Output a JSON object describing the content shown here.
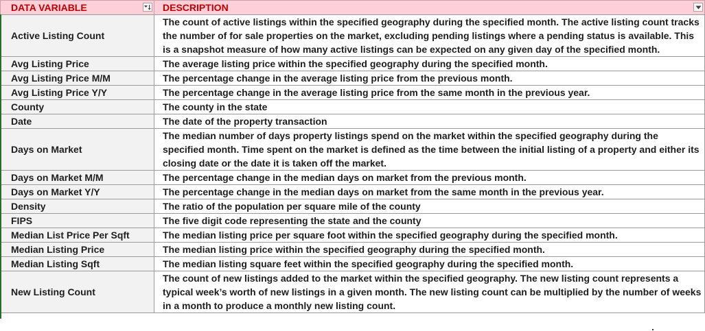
{
  "header": {
    "col1": "DATA VARIABLE",
    "col2": "DESCRIPTION",
    "col1_filter_icon": "sort-filter-icon",
    "col2_filter_icon": "dropdown-filter-icon"
  },
  "colors": {
    "header_bg": "#ffcfd9",
    "header_text": "#c00000",
    "variable_col_bg": "#f2f2f2",
    "grid_line": "#9b9b9b"
  },
  "rows": [
    {
      "variable": "Active Listing Count",
      "description": "The count of active listings within the specified geography during the specified month. The active listing count tracks the number of for sale properties on the market, excluding pending listings where a pending status is available. This is a snapshot measure of how many active listings can be expected on any given day of the specified month."
    },
    {
      "variable": "Avg Listing Price",
      "description": "The average listing price within the specified geography during the specified month."
    },
    {
      "variable": "Avg Listing Price M/M",
      "description": "The percentage change in the average listing price from the previous month."
    },
    {
      "variable": "Avg Listing Price Y/Y",
      "description": "The percentage change in the average listing price from the same month in the previous year."
    },
    {
      "variable": "County",
      "description": "The county in the state"
    },
    {
      "variable": "Date",
      "description": "The date of the property transaction"
    },
    {
      "variable": "Days on Market",
      "description": "The median number of days property listings spend on the market within the specified geography during the specified month. Time spent on the market is defined as the time between the initial listing of a property and either its closing date or the date it is taken off the market."
    },
    {
      "variable": "Days on Market M/M",
      "description": "The percentage change in the median days on market from the previous month."
    },
    {
      "variable": "Days on Market Y/Y",
      "description": "The percentage change in the median days on market from the same month in the previous year."
    },
    {
      "variable": "Density",
      "description": "The ratio of the population per square mile of the county"
    },
    {
      "variable": "FIPS",
      "description": "The five digit code representing the state and the county"
    },
    {
      "variable": "Median List Price Per Sqft",
      "description": "The median listing price per square foot within the specified geography during the specified month."
    },
    {
      "variable": "Median Listing Price",
      "description": "The median listing price within the specified geography during the specified month."
    },
    {
      "variable": "Median Listing Sqft",
      "description": "The median listing square feet within the specified geography during the specified month."
    },
    {
      "variable": "New Listing Count",
      "description": "The count of new listings added to the market within the specified geography. The new listing count represents a typical week’s worth of new listings in a given month. The new listing count can be multiplied by the number of weeks in a month to produce a monthly new listing count."
    }
  ]
}
